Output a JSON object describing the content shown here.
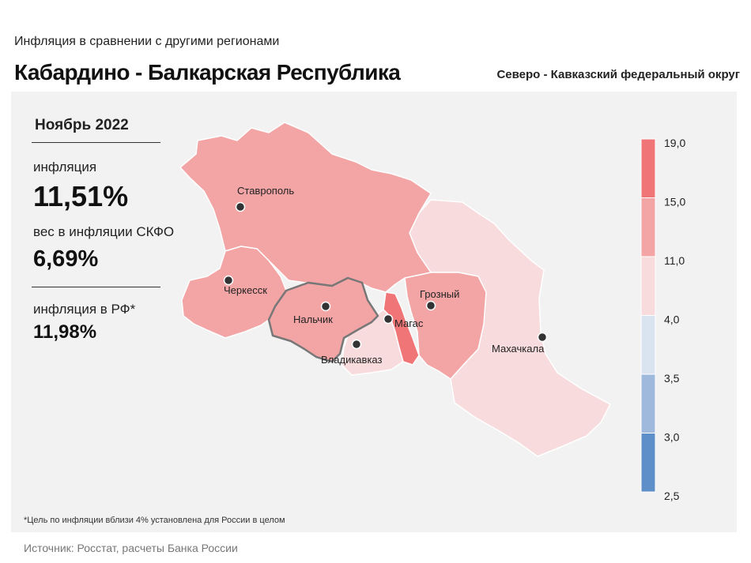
{
  "header": {
    "subtitle": "Инфляция  в сравнении  с другими  регионами",
    "title": "Кабардино - Балкарская Республика",
    "district": "Северо - Кавказский федеральный округ"
  },
  "stats": {
    "period": "Ноябрь 2022",
    "inflation_label": "инфляция",
    "inflation_value": "11,51%",
    "weight_label": "вес в инфляции  СКФО",
    "weight_value": "6,69%",
    "rf_label": "инфляция  в РФ*",
    "rf_value": "11,98%"
  },
  "map": {
    "highlighted_region": "Кабардино-Балкарская Республика",
    "colors": {
      "band_15_19": "#f07576",
      "band_11_15": "#f3a4a5",
      "band_4_11": "#f8dcdd",
      "band_3_5_4": "#dae4f1",
      "band_3_3_5": "#9fb9dc",
      "band_2_5_3": "#5f8fc8",
      "border": "#ffffff",
      "highlight_border": "#777777"
    },
    "cities": [
      {
        "id": "stavropol",
        "name": "Ставрополь"
      },
      {
        "id": "cherkessk",
        "name": "Черкесск"
      },
      {
        "id": "nalchik",
        "name": "Нальчик"
      },
      {
        "id": "magas",
        "name": "Магас"
      },
      {
        "id": "grozny",
        "name": "Грозный"
      },
      {
        "id": "vladikavkaz",
        "name": "Владикавказ"
      },
      {
        "id": "makhachkala",
        "name": "Махачкала"
      }
    ]
  },
  "legend": {
    "ticks": [
      "19,0",
      "15,0",
      "11,0",
      "4,0",
      "3,5",
      "3,0",
      "2,5"
    ]
  },
  "footnote": "*Цель по инфляции вблизи 4% установлена для России в целом",
  "source": "Источник: Росстат, расчеты Банка России"
}
